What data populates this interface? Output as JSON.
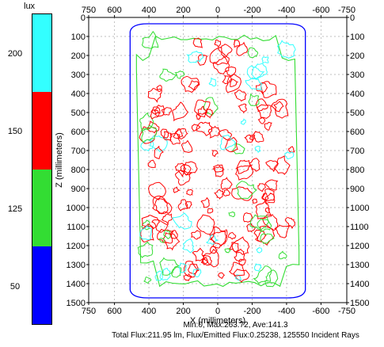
{
  "legend": {
    "unit": "lux",
    "labels": [
      "200",
      "150",
      "125",
      "50"
    ],
    "colors": [
      "#33ffff",
      "#ff0000",
      "#33dd33",
      "#0000ff"
    ]
  },
  "chart_data": {
    "type": "heatmap",
    "subtype": "illuminance contour map",
    "xlabel": "X (millimeters)",
    "ylabel": "Z (millimeters)",
    "x_ticks": [
      750,
      600,
      400,
      200,
      0,
      -200,
      -400,
      -600,
      -750
    ],
    "x_ticks_top": [
      750,
      600,
      400,
      200,
      0,
      -200,
      -400,
      -600,
      -750
    ],
    "y_ticks": [
      0,
      100,
      200,
      300,
      400,
      500,
      600,
      700,
      800,
      900,
      1000,
      1100,
      1200,
      1300,
      1400,
      1500
    ],
    "xlim": [
      750,
      -750
    ],
    "ylim": [
      1500,
      0
    ],
    "grid": true,
    "contour_levels": [
      {
        "label": "200",
        "color": "#33ffff"
      },
      {
        "label": "150",
        "color": "#ff0000"
      },
      {
        "label": "125",
        "color": "#33dd33"
      },
      {
        "label": "50",
        "color": "#0000ff"
      }
    ],
    "lit_region": {
      "x": [
        500,
        -500
      ],
      "z": [
        0,
        1500
      ]
    }
  },
  "stats": {
    "line1": "Min:0, Max:263.72, Ave:141.3",
    "line2": "Total Flux:211.95 lm, Flux/Emitted Flux:0.25238, 125550 Incident Rays"
  }
}
